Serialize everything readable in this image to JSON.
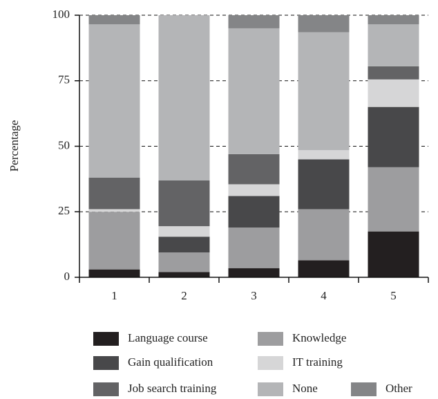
{
  "chart_data": {
    "type": "stacked_bar",
    "y_label": "Percentage",
    "categories": [
      "1",
      "2",
      "3",
      "4",
      "5"
    ],
    "ylim": [
      0,
      100
    ],
    "yticks": [
      0,
      25,
      50,
      75,
      100
    ],
    "grid": true,
    "series": [
      {
        "name": "Language course",
        "color": "#231f20",
        "values": [
          3,
          2,
          3.5,
          6.5,
          17.5
        ]
      },
      {
        "name": "Knowledge",
        "color": "#9d9d9f",
        "values": [
          22,
          7.5,
          15.5,
          19.5,
          24.5
        ]
      },
      {
        "name": "Gain qualification",
        "color": "#48484a",
        "values": [
          0,
          6,
          12,
          19,
          23
        ]
      },
      {
        "name": "IT training",
        "color": "#d6d6d7",
        "values": [
          1,
          4,
          4.5,
          3.5,
          10.5
        ]
      },
      {
        "name": "Job search training",
        "color": "#636365",
        "values": [
          12,
          17.5,
          11.5,
          0,
          5
        ]
      },
      {
        "name": "None",
        "color": "#b4b5b7",
        "values": [
          58.5,
          63,
          48,
          45,
          16
        ]
      },
      {
        "name": "Other",
        "color": "#848587",
        "values": [
          3.5,
          0,
          5,
          6.5,
          3.5
        ]
      }
    ]
  }
}
